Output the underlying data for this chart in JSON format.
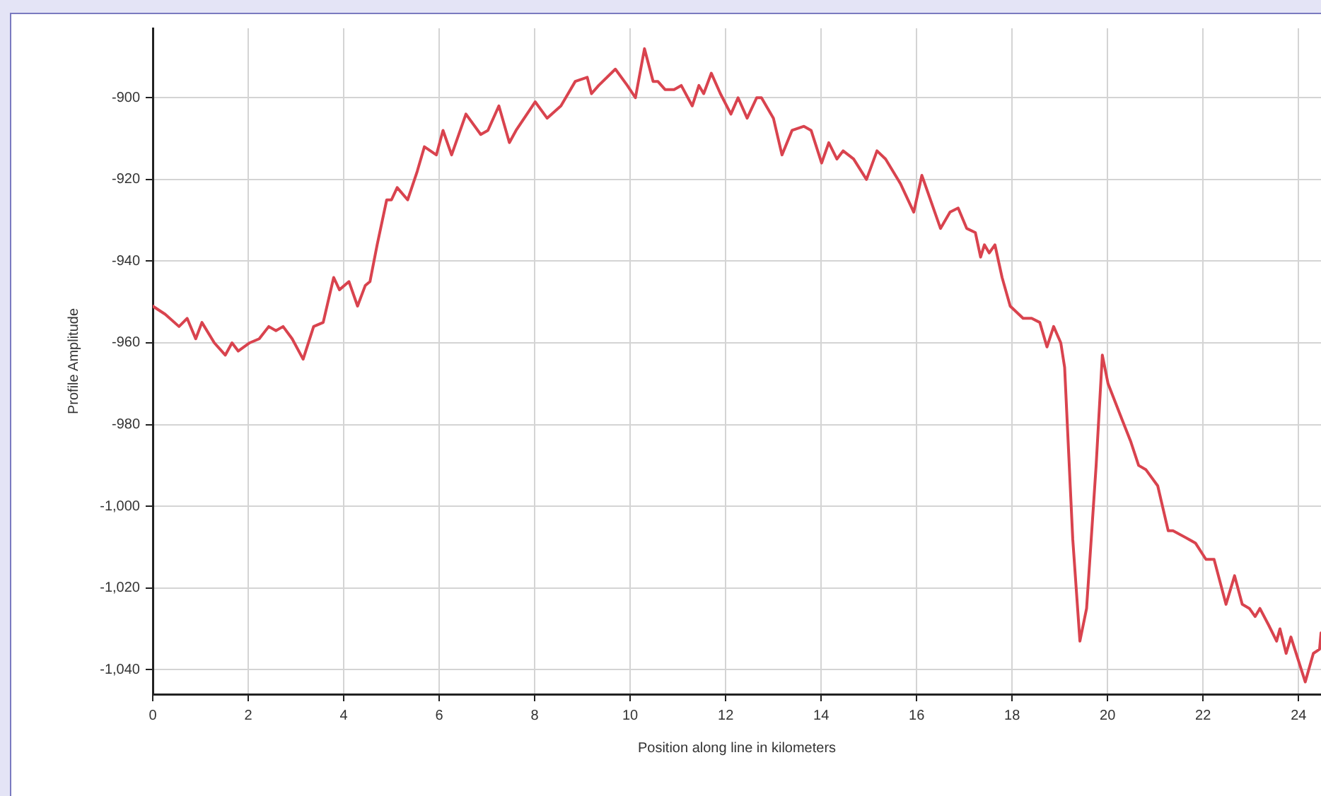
{
  "chart_data": {
    "type": "line",
    "xlabel": "Position along line in kilometers",
    "ylabel": "Profile Amplitude",
    "xlim": [
      0,
      24.47
    ],
    "xticks": [
      0,
      2,
      4,
      6,
      8,
      10,
      12,
      14,
      16,
      18,
      20,
      22,
      24
    ],
    "ylim": [
      -1046,
      -883
    ],
    "yticks": [
      {
        "value": -1040,
        "label": "-1,040"
      },
      {
        "value": -1020,
        "label": "-1,020"
      },
      {
        "value": -1000,
        "label": "-1,000"
      },
      -980,
      -960,
      -940,
      -920,
      -900
    ],
    "grid": true,
    "marker": "none",
    "line_style": "solid",
    "series": [
      {
        "color": "#d9434e",
        "x": [
          0,
          0.26,
          0.55,
          0.72,
          0.9,
          1.03,
          1.29,
          1.52,
          1.66,
          1.79,
          2.03,
          2.23,
          2.43,
          2.58,
          2.73,
          2.92,
          3.15,
          3.37,
          3.57,
          3.79,
          3.91,
          4.11,
          4.29,
          4.45,
          4.55,
          4.7,
          4.9,
          5.0,
          5.12,
          5.34,
          5.54,
          5.69,
          5.94,
          6.08,
          6.26,
          6.56,
          6.87,
          7.02,
          7.25,
          7.47,
          7.61,
          8.01,
          8.26,
          8.55,
          8.7,
          8.85,
          9.1,
          9.19,
          9.34,
          9.69,
          9.94,
          10.11,
          10.3,
          10.48,
          10.58,
          10.73,
          10.92,
          11.07,
          11.3,
          11.44,
          11.54,
          11.7,
          11.89,
          12.11,
          12.26,
          12.45,
          12.65,
          12.75,
          13.0,
          13.18,
          13.39,
          13.64,
          13.79,
          14.01,
          14.16,
          14.33,
          14.46,
          14.68,
          14.95,
          15.17,
          15.35,
          15.66,
          15.94,
          16.11,
          16.5,
          16.7,
          16.87,
          17.05,
          17.23,
          17.34,
          17.42,
          17.52,
          17.64,
          17.79,
          17.96,
          18.23,
          18.41,
          18.58,
          18.73,
          18.87,
          19.02,
          19.1,
          19.27,
          19.42,
          19.56,
          19.76,
          19.89,
          20.01,
          20.31,
          20.48,
          20.65,
          20.8,
          21.05,
          21.27,
          21.37,
          21.69,
          21.84,
          22.06,
          22.23,
          22.48,
          22.66,
          22.82,
          22.97,
          23.09,
          23.19,
          23.37,
          23.54,
          23.61,
          23.74,
          23.84,
          24.14,
          24.31,
          24.44,
          24.47
        ],
        "values": [
          -951,
          -953,
          -956,
          -954,
          -959,
          -955,
          -960,
          -963,
          -960,
          -962,
          -960,
          -959,
          -956,
          -957,
          -956,
          -959,
          -964,
          -956,
          -955,
          -944,
          -947,
          -945,
          -951,
          -946,
          -945,
          -936,
          -925,
          -925,
          -922,
          -925,
          -918,
          -912,
          -914,
          -908,
          -914,
          -904,
          -909,
          -908,
          -902,
          -911,
          -908,
          -901,
          -905,
          -902,
          -899,
          -896,
          -895,
          -899,
          -897,
          -893,
          -897,
          -900,
          -888,
          -896,
          -896,
          -898,
          -898,
          -897,
          -902,
          -897,
          -899,
          -894,
          -899,
          -904,
          -900,
          -905,
          -900,
          -900,
          -905,
          -914,
          -908,
          -907,
          -908,
          -916,
          -911,
          -915,
          -913,
          -915,
          -920,
          -913,
          -915,
          -921,
          -928,
          -919,
          -932,
          -928,
          -927,
          -932,
          -933,
          -939,
          -936,
          -938,
          -936,
          -944,
          -951,
          -954,
          -954,
          -955,
          -961,
          -956,
          -960,
          -966,
          -1008,
          -1033,
          -1025,
          -990,
          -963,
          -970,
          -979,
          -984,
          -990,
          -991,
          -995,
          -1006,
          -1006,
          -1008,
          -1009,
          -1013,
          -1013,
          -1024,
          -1017,
          -1024,
          -1025,
          -1027,
          -1025,
          -1029,
          -1033,
          -1030,
          -1036,
          -1032,
          -1043,
          -1036,
          -1035,
          -1031
        ]
      }
    ]
  }
}
